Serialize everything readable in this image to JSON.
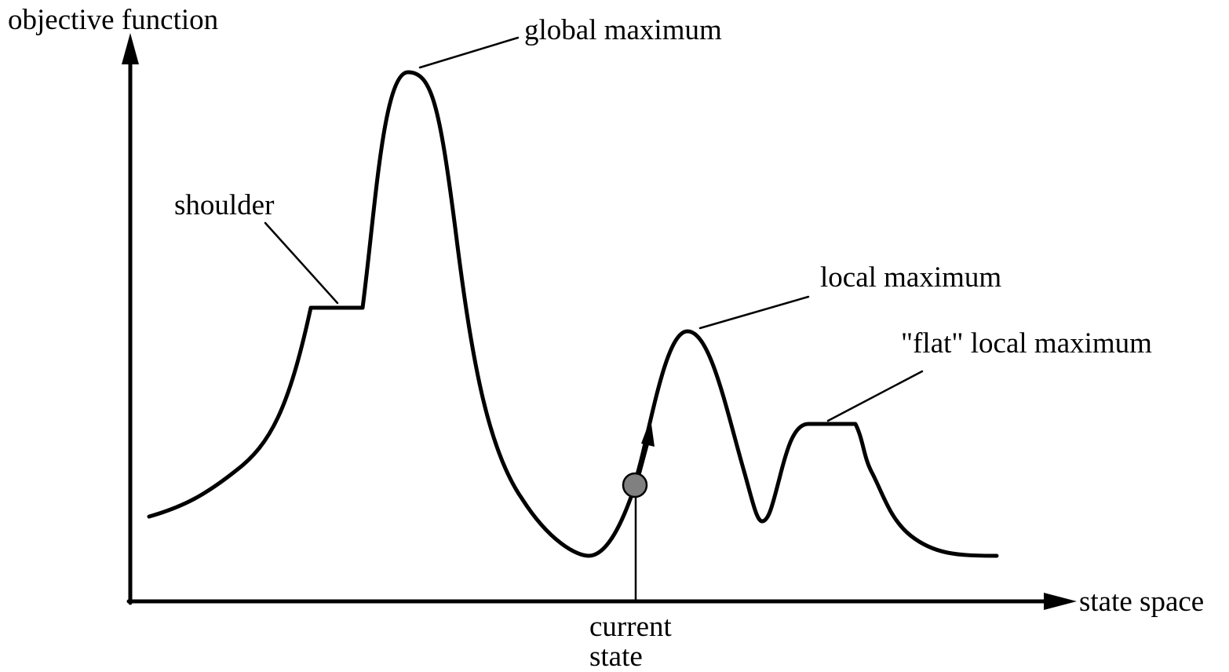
{
  "axes": {
    "y_label": "objective function",
    "x_label": "state space"
  },
  "annotations": {
    "global_maximum": "global maximum",
    "shoulder": "shoulder",
    "local_maximum": "local maximum",
    "flat_local_maximum": "\"flat\" local maximum",
    "current_state_line1": "current",
    "current_state_line2": "state"
  },
  "colors": {
    "line": "#000000",
    "current_state_marker": "#808080"
  }
}
